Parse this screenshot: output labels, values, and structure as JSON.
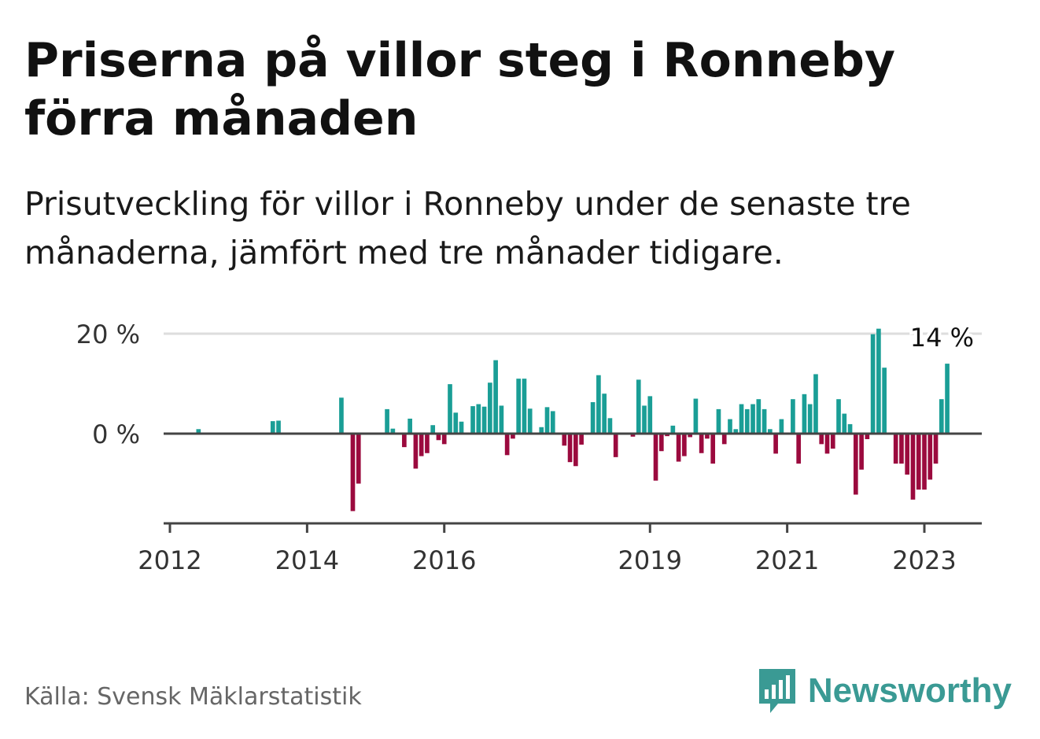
{
  "header": {
    "title": "Priserna på villor steg i Ronneby förra månaden",
    "subtitle": "Prisutveckling för villor i Ronneby under de senaste tre månaderna, jämfört med tre månader tidigare."
  },
  "footer": {
    "source": "Källa: Svensk Mäklarstatistik",
    "brand": "Newsworthy"
  },
  "colors": {
    "positive": "#1a9e96",
    "negative": "#9b0a3e",
    "axis": "#444444",
    "grid": "#dddddd",
    "brand": "#3a9a94"
  },
  "icons": {
    "brand": "bar-chart-speech-bubble-icon"
  },
  "chart_data": {
    "type": "bar",
    "title": "Priserna på villor steg i Ronneby förra månaden",
    "subtitle": "Prisutveckling för villor i Ronneby under de senaste tre månaderna, jämfört med tre månader tidigare.",
    "y_unit": "%",
    "ylim": [
      -16,
      21
    ],
    "yticks": [
      {
        "value": 0,
        "label": "0 %"
      },
      {
        "value": 20,
        "label": "20 %"
      }
    ],
    "xlim": [
      "2012-01",
      "2023-12"
    ],
    "xticks": [
      {
        "date": "2012-01",
        "label": "2012"
      },
      {
        "date": "2014-01",
        "label": "2014"
      },
      {
        "date": "2016-01",
        "label": "2016"
      },
      {
        "date": "2019-01",
        "label": "2019"
      },
      {
        "date": "2021-01",
        "label": "2021"
      },
      {
        "date": "2023-01",
        "label": "2023"
      }
    ],
    "grid": true,
    "last_value_label": "14 %",
    "points": [
      {
        "date": "2012-06",
        "value": 0.9
      },
      {
        "date": "2013-07",
        "value": 2.5
      },
      {
        "date": "2013-08",
        "value": 2.6
      },
      {
        "date": "2014-07",
        "value": 7.2
      },
      {
        "date": "2014-09",
        "value": -15.5
      },
      {
        "date": "2014-10",
        "value": -10.0
      },
      {
        "date": "2015-03",
        "value": 4.9
      },
      {
        "date": "2015-04",
        "value": 1.0
      },
      {
        "date": "2015-06",
        "value": -2.7
      },
      {
        "date": "2015-07",
        "value": 3.0
      },
      {
        "date": "2015-08",
        "value": -7.0
      },
      {
        "date": "2015-09",
        "value": -4.5
      },
      {
        "date": "2015-10",
        "value": -3.9
      },
      {
        "date": "2015-11",
        "value": 1.7
      },
      {
        "date": "2015-12",
        "value": -1.3
      },
      {
        "date": "2016-01",
        "value": -2.1
      },
      {
        "date": "2016-02",
        "value": 9.9
      },
      {
        "date": "2016-03",
        "value": 4.2
      },
      {
        "date": "2016-04",
        "value": 2.4
      },
      {
        "date": "2016-06",
        "value": 5.5
      },
      {
        "date": "2016-07",
        "value": 5.9
      },
      {
        "date": "2016-08",
        "value": 5.4
      },
      {
        "date": "2016-09",
        "value": 10.2
      },
      {
        "date": "2016-10",
        "value": 14.7
      },
      {
        "date": "2016-11",
        "value": 5.6
      },
      {
        "date": "2016-12",
        "value": -4.3
      },
      {
        "date": "2017-01",
        "value": -1.0
      },
      {
        "date": "2017-02",
        "value": 11.0
      },
      {
        "date": "2017-03",
        "value": 11.0
      },
      {
        "date": "2017-04",
        "value": 5.0
      },
      {
        "date": "2017-06",
        "value": 1.3
      },
      {
        "date": "2017-07",
        "value": 5.3
      },
      {
        "date": "2017-08",
        "value": 4.5
      },
      {
        "date": "2017-10",
        "value": -2.4
      },
      {
        "date": "2017-11",
        "value": -5.7
      },
      {
        "date": "2017-12",
        "value": -6.5
      },
      {
        "date": "2018-01",
        "value": -2.2
      },
      {
        "date": "2018-03",
        "value": 6.3
      },
      {
        "date": "2018-04",
        "value": 11.7
      },
      {
        "date": "2018-05",
        "value": 8.0
      },
      {
        "date": "2018-06",
        "value": 3.1
      },
      {
        "date": "2018-07",
        "value": -4.7
      },
      {
        "date": "2018-08",
        "value": 0.2
      },
      {
        "date": "2018-10",
        "value": -0.6
      },
      {
        "date": "2018-11",
        "value": 10.8
      },
      {
        "date": "2018-12",
        "value": 5.6
      },
      {
        "date": "2019-01",
        "value": 7.5
      },
      {
        "date": "2019-02",
        "value": -9.4
      },
      {
        "date": "2019-03",
        "value": -3.5
      },
      {
        "date": "2019-04",
        "value": -0.5
      },
      {
        "date": "2019-05",
        "value": 1.6
      },
      {
        "date": "2019-06",
        "value": -5.6
      },
      {
        "date": "2019-07",
        "value": -4.5
      },
      {
        "date": "2019-08",
        "value": -0.7
      },
      {
        "date": "2019-09",
        "value": 7.0
      },
      {
        "date": "2019-10",
        "value": -3.9
      },
      {
        "date": "2019-11",
        "value": -1.0
      },
      {
        "date": "2019-12",
        "value": -6.0
      },
      {
        "date": "2020-01",
        "value": 4.9
      },
      {
        "date": "2020-02",
        "value": -2.1
      },
      {
        "date": "2020-03",
        "value": 2.9
      },
      {
        "date": "2020-04",
        "value": 0.9
      },
      {
        "date": "2020-05",
        "value": 5.9
      },
      {
        "date": "2020-06",
        "value": 4.9
      },
      {
        "date": "2020-07",
        "value": 5.9
      },
      {
        "date": "2020-08",
        "value": 6.9
      },
      {
        "date": "2020-09",
        "value": 4.9
      },
      {
        "date": "2020-10",
        "value": 0.9
      },
      {
        "date": "2020-11",
        "value": -4.0
      },
      {
        "date": "2020-12",
        "value": 2.9
      },
      {
        "date": "2021-02",
        "value": 6.9
      },
      {
        "date": "2021-03",
        "value": -6.0
      },
      {
        "date": "2021-04",
        "value": 7.9
      },
      {
        "date": "2021-05",
        "value": 5.9
      },
      {
        "date": "2021-06",
        "value": 11.9
      },
      {
        "date": "2021-07",
        "value": -2.1
      },
      {
        "date": "2021-08",
        "value": -4.0
      },
      {
        "date": "2021-09",
        "value": -3.0
      },
      {
        "date": "2021-10",
        "value": 6.9
      },
      {
        "date": "2021-11",
        "value": 4.0
      },
      {
        "date": "2021-12",
        "value": 1.9
      },
      {
        "date": "2022-01",
        "value": -12.2
      },
      {
        "date": "2022-02",
        "value": -7.2
      },
      {
        "date": "2022-03",
        "value": -1.1
      },
      {
        "date": "2022-04",
        "value": 19.9
      },
      {
        "date": "2022-05",
        "value": 21.0
      },
      {
        "date": "2022-06",
        "value": 13.2
      },
      {
        "date": "2022-08",
        "value": -6.0
      },
      {
        "date": "2022-09",
        "value": -6.0
      },
      {
        "date": "2022-10",
        "value": -8.2
      },
      {
        "date": "2022-11",
        "value": -13.2
      },
      {
        "date": "2022-12",
        "value": -11.2
      },
      {
        "date": "2023-01",
        "value": -11.2
      },
      {
        "date": "2023-02",
        "value": -9.2
      },
      {
        "date": "2023-03",
        "value": -6.0
      },
      {
        "date": "2023-04",
        "value": 6.9
      },
      {
        "date": "2023-05",
        "value": 14.0
      }
    ]
  }
}
